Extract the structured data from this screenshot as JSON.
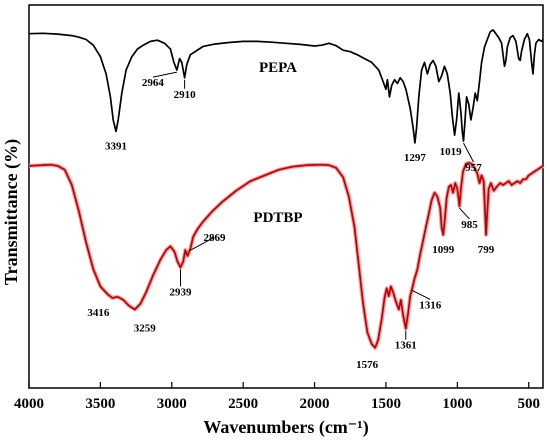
{
  "chart_data": {
    "type": "line",
    "xlabel": "Wavenumbers (cm⁻¹)",
    "ylabel": "Transmittance (%)",
    "xlim": [
      4000,
      400
    ],
    "x_direction": "reversed",
    "xticks": [
      4000,
      3500,
      3000,
      2500,
      2000,
      1500,
      1000,
      500
    ],
    "ylim": [
      0,
      100
    ],
    "y_ticks_shown": false,
    "grid": false,
    "series": [
      {
        "name": "PEPA",
        "color": "#000000",
        "points": [
          [
            4000,
            92.5
          ],
          [
            3900,
            92.6
          ],
          [
            3800,
            92.4
          ],
          [
            3700,
            92.0
          ],
          [
            3650,
            91.6
          ],
          [
            3600,
            91.0
          ],
          [
            3550,
            89.5
          ],
          [
            3500,
            86.5
          ],
          [
            3460,
            82.0
          ],
          [
            3430,
            76.0
          ],
          [
            3410,
            70.0
          ],
          [
            3391,
            67.0
          ],
          [
            3375,
            70.0
          ],
          [
            3350,
            77.0
          ],
          [
            3320,
            83.0
          ],
          [
            3280,
            86.5
          ],
          [
            3240,
            88.5
          ],
          [
            3200,
            89.5
          ],
          [
            3150,
            90.5
          ],
          [
            3100,
            90.8
          ],
          [
            3050,
            90.0
          ],
          [
            3010,
            88.5
          ],
          [
            2985,
            85.0
          ],
          [
            2964,
            83.0
          ],
          [
            2945,
            86.0
          ],
          [
            2930,
            85.0
          ],
          [
            2910,
            81.0
          ],
          [
            2895,
            84.5
          ],
          [
            2870,
            87.0
          ],
          [
            2830,
            88.0
          ],
          [
            2780,
            89.2
          ],
          [
            2700,
            89.8
          ],
          [
            2600,
            90.2
          ],
          [
            2500,
            90.5
          ],
          [
            2400,
            90.5
          ],
          [
            2300,
            90.3
          ],
          [
            2200,
            90.0
          ],
          [
            2100,
            89.7
          ],
          [
            2000,
            89.3
          ],
          [
            1950,
            89.5
          ],
          [
            1900,
            90.0
          ],
          [
            1850,
            89.4
          ],
          [
            1800,
            88.2
          ],
          [
            1750,
            87.8
          ],
          [
            1700,
            87.0
          ],
          [
            1650,
            86.0
          ],
          [
            1600,
            85.0
          ],
          [
            1550,
            83.0
          ],
          [
            1520,
            80.0
          ],
          [
            1500,
            78.0
          ],
          [
            1490,
            80.5
          ],
          [
            1475,
            76.0
          ],
          [
            1460,
            79.0
          ],
          [
            1440,
            80.5
          ],
          [
            1420,
            79.5
          ],
          [
            1400,
            81.0
          ],
          [
            1380,
            80.0
          ],
          [
            1360,
            78.0
          ],
          [
            1330,
            73.0
          ],
          [
            1310,
            68.0
          ],
          [
            1297,
            64.0
          ],
          [
            1285,
            68.0
          ],
          [
            1270,
            76.0
          ],
          [
            1250,
            83.0
          ],
          [
            1230,
            85.0
          ],
          [
            1210,
            82.0
          ],
          [
            1190,
            84.5
          ],
          [
            1170,
            85.5
          ],
          [
            1150,
            84.0
          ],
          [
            1130,
            80.0
          ],
          [
            1110,
            81.5
          ],
          [
            1090,
            84.0
          ],
          [
            1070,
            82.0
          ],
          [
            1050,
            77.0
          ],
          [
            1035,
            71.0
          ],
          [
            1019,
            66.0
          ],
          [
            1005,
            70.0
          ],
          [
            990,
            77.0
          ],
          [
            975,
            72.0
          ],
          [
            965,
            67.0
          ],
          [
            957,
            64.5
          ],
          [
            948,
            69.0
          ],
          [
            935,
            76.0
          ],
          [
            920,
            74.0
          ],
          [
            905,
            70.0
          ],
          [
            890,
            73.0
          ],
          [
            875,
            77.0
          ],
          [
            860,
            75.0
          ],
          [
            845,
            80.0
          ],
          [
            830,
            85.0
          ],
          [
            810,
            89.0
          ],
          [
            790,
            91.0
          ],
          [
            770,
            93.0
          ],
          [
            750,
            93.5
          ],
          [
            730,
            92.5
          ],
          [
            710,
            91.5
          ],
          [
            690,
            90.0
          ],
          [
            670,
            84.0
          ],
          [
            660,
            85.5
          ],
          [
            650,
            89.0
          ],
          [
            630,
            91.5
          ],
          [
            610,
            92.0
          ],
          [
            590,
            90.5
          ],
          [
            570,
            86.0
          ],
          [
            560,
            85.5
          ],
          [
            550,
            88.0
          ],
          [
            530,
            91.0
          ],
          [
            510,
            92.5
          ],
          [
            495,
            91.0
          ],
          [
            480,
            85.0
          ],
          [
            470,
            82.0
          ],
          [
            460,
            87.0
          ],
          [
            450,
            90.0
          ],
          [
            430,
            91.0
          ],
          [
            410,
            90.5
          ],
          [
            400,
            91.0
          ]
        ]
      },
      {
        "name": "PDTBP",
        "color": "#c00000",
        "points": [
          [
            4000,
            58.0
          ],
          [
            3900,
            58.2
          ],
          [
            3850,
            58.3
          ],
          [
            3800,
            58.0
          ],
          [
            3750,
            57.0
          ],
          [
            3700,
            53.0
          ],
          [
            3650,
            46.0
          ],
          [
            3600,
            38.0
          ],
          [
            3550,
            31.0
          ],
          [
            3500,
            26.5
          ],
          [
            3450,
            24.5
          ],
          [
            3416,
            23.5
          ],
          [
            3380,
            23.8
          ],
          [
            3340,
            23.0
          ],
          [
            3300,
            21.5
          ],
          [
            3259,
            20.5
          ],
          [
            3220,
            22.0
          ],
          [
            3180,
            25.0
          ],
          [
            3130,
            29.5
          ],
          [
            3080,
            33.5
          ],
          [
            3040,
            36.0
          ],
          [
            3010,
            37.0
          ],
          [
            2980,
            35.5
          ],
          [
            2960,
            33.0
          ],
          [
            2939,
            31.5
          ],
          [
            2920,
            33.0
          ],
          [
            2905,
            36.0
          ],
          [
            2890,
            34.5
          ],
          [
            2869,
            36.5
          ],
          [
            2850,
            39.5
          ],
          [
            2820,
            41.5
          ],
          [
            2780,
            43.5
          ],
          [
            2720,
            46.0
          ],
          [
            2650,
            48.5
          ],
          [
            2550,
            51.5
          ],
          [
            2450,
            54.0
          ],
          [
            2350,
            55.5
          ],
          [
            2250,
            57.0
          ],
          [
            2150,
            57.8
          ],
          [
            2050,
            58.2
          ],
          [
            1950,
            58.3
          ],
          [
            1900,
            58.2
          ],
          [
            1850,
            57.5
          ],
          [
            1800,
            55.0
          ],
          [
            1760,
            50.0
          ],
          [
            1720,
            42.0
          ],
          [
            1690,
            32.0
          ],
          [
            1660,
            22.0
          ],
          [
            1630,
            14.5
          ],
          [
            1600,
            11.5
          ],
          [
            1576,
            10.5
          ],
          [
            1555,
            12.5
          ],
          [
            1530,
            18.0
          ],
          [
            1510,
            23.5
          ],
          [
            1495,
            26.0
          ],
          [
            1480,
            24.0
          ],
          [
            1465,
            26.5
          ],
          [
            1450,
            25.0
          ],
          [
            1430,
            22.5
          ],
          [
            1410,
            20.5
          ],
          [
            1395,
            23.0
          ],
          [
            1380,
            19.0
          ],
          [
            1361,
            15.5
          ],
          [
            1345,
            19.5
          ],
          [
            1330,
            24.0
          ],
          [
            1316,
            26.0
          ],
          [
            1300,
            28.5
          ],
          [
            1280,
            31.0
          ],
          [
            1260,
            35.0
          ],
          [
            1240,
            38.5
          ],
          [
            1220,
            42.0
          ],
          [
            1200,
            45.5
          ],
          [
            1180,
            49.0
          ],
          [
            1160,
            51.0
          ],
          [
            1140,
            50.0
          ],
          [
            1120,
            47.0
          ],
          [
            1110,
            42.0
          ],
          [
            1099,
            40.0
          ],
          [
            1088,
            44.0
          ],
          [
            1075,
            49.5
          ],
          [
            1060,
            52.5
          ],
          [
            1045,
            53.0
          ],
          [
            1030,
            51.0
          ],
          [
            1015,
            53.5
          ],
          [
            1000,
            52.0
          ],
          [
            990,
            49.0
          ],
          [
            985,
            47.5
          ],
          [
            975,
            52.0
          ],
          [
            960,
            56.5
          ],
          [
            940,
            58.5
          ],
          [
            920,
            58.8
          ],
          [
            900,
            58.5
          ],
          [
            880,
            57.5
          ],
          [
            860,
            56.0
          ],
          [
            845,
            53.5
          ],
          [
            830,
            55.5
          ],
          [
            815,
            54.0
          ],
          [
            805,
            45.0
          ],
          [
            799,
            40.0
          ],
          [
            790,
            46.0
          ],
          [
            780,
            52.0
          ],
          [
            765,
            53.5
          ],
          [
            745,
            51.5
          ],
          [
            725,
            52.5
          ],
          [
            700,
            53.5
          ],
          [
            680,
            53.0
          ],
          [
            660,
            53.5
          ],
          [
            640,
            54.0
          ],
          [
            620,
            53.0
          ],
          [
            600,
            53.5
          ],
          [
            580,
            54.0
          ],
          [
            560,
            53.5
          ],
          [
            540,
            54.5
          ],
          [
            520,
            54.5
          ],
          [
            500,
            55.5
          ],
          [
            480,
            56.0
          ],
          [
            460,
            56.5
          ],
          [
            440,
            57.0
          ],
          [
            420,
            57.5
          ],
          [
            400,
            58.0
          ]
        ]
      }
    ],
    "annotations": [
      {
        "text": "3391",
        "x": 3391,
        "y": 67.0,
        "series": "PEPA",
        "style": "below"
      },
      {
        "text": "2964",
        "x": 2964,
        "y": 83.0,
        "series": "PEPA",
        "style": "arrow"
      },
      {
        "text": "2910",
        "x": 2910,
        "y": 81.0,
        "series": "PEPA",
        "style": "arrow"
      },
      {
        "text": "1297",
        "x": 1297,
        "y": 64.0,
        "series": "PEPA",
        "style": "below"
      },
      {
        "text": "1019",
        "x": 1019,
        "y": 66.0,
        "series": "PEPA",
        "style": "below"
      },
      {
        "text": "957",
        "x": 957,
        "y": 64.5,
        "series": "PEPA",
        "style": "arrow"
      },
      {
        "text": "3416",
        "x": 3416,
        "y": 23.5,
        "series": "PDTBP",
        "style": "below"
      },
      {
        "text": "3259",
        "x": 3259,
        "y": 20.5,
        "series": "PDTBP",
        "style": "below"
      },
      {
        "text": "2939",
        "x": 2939,
        "y": 31.5,
        "series": "PDTBP",
        "style": "arrow"
      },
      {
        "text": "2869",
        "x": 2869,
        "y": 36.5,
        "series": "PDTBP",
        "style": "arrow"
      },
      {
        "text": "1576",
        "x": 1576,
        "y": 10.5,
        "series": "PDTBP",
        "style": "below"
      },
      {
        "text": "1361",
        "x": 1361,
        "y": 15.5,
        "series": "PDTBP",
        "style": "arrow"
      },
      {
        "text": "1316",
        "x": 1316,
        "y": 26.0,
        "series": "PDTBP",
        "style": "arrow"
      },
      {
        "text": "1099",
        "x": 1099,
        "y": 40.0,
        "series": "PDTBP",
        "style": "below"
      },
      {
        "text": "985",
        "x": 985,
        "y": 47.5,
        "series": "PDTBP",
        "style": "arrow"
      },
      {
        "text": "799",
        "x": 799,
        "y": 40.0,
        "series": "PDTBP",
        "style": "below"
      }
    ]
  }
}
